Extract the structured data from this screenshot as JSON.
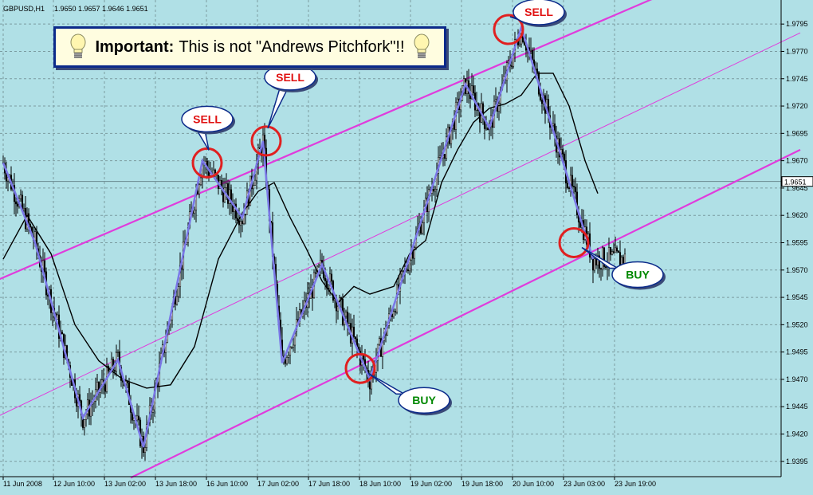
{
  "chart_data": {
    "type": "candlestick",
    "symbol_header": "GBPUSD,H1",
    "ohlc_header": "1.9650 1.9657 1.9646 1.9651",
    "last_price": "1.9651",
    "y_ticks": [
      "1.9795",
      "1.9770",
      "1.9745",
      "1.9720",
      "1.9695",
      "1.9670",
      "1.9645",
      "1.9620",
      "1.9595",
      "1.9570",
      "1.9545",
      "1.9520",
      "1.9495",
      "1.9470",
      "1.9445",
      "1.9420",
      "1.9395"
    ],
    "ylim": [
      1.9381,
      1.9817
    ],
    "x_ticks": [
      "11 Jun 2008",
      "12 Jun 10:00",
      "13 Jun 02:00",
      "13 Jun 18:00",
      "16 Jun 10:00",
      "17 Jun 02:00",
      "17 Jun 18:00",
      "18 Jun 10:00",
      "19 Jun 02:00",
      "19 Jun 18:00",
      "20 Jun 10:00",
      "23 Jun 03:00",
      "23 Jun 19:00"
    ],
    "zigzag": [
      [
        0,
        1.9668
      ],
      [
        20,
        1.9595
      ],
      [
        50,
        1.9435
      ],
      [
        72,
        1.9488
      ],
      [
        88,
        1.9408
      ],
      [
        125,
        1.967
      ],
      [
        150,
        1.9618
      ],
      [
        163,
        1.9688
      ],
      [
        175,
        1.9485
      ],
      [
        200,
        1.9575
      ],
      [
        230,
        1.947
      ],
      [
        290,
        1.974
      ],
      [
        305,
        1.97
      ],
      [
        325,
        1.9792
      ],
      [
        370,
        1.958
      ]
    ],
    "ma": [
      [
        0,
        1.958
      ],
      [
        15,
        1.962
      ],
      [
        30,
        1.9585
      ],
      [
        45,
        1.952
      ],
      [
        60,
        1.9487
      ],
      [
        75,
        1.947
      ],
      [
        90,
        1.9462
      ],
      [
        105,
        1.9465
      ],
      [
        120,
        1.95
      ],
      [
        135,
        1.958
      ],
      [
        150,
        1.9622
      ],
      [
        160,
        1.9642
      ],
      [
        170,
        1.965
      ],
      [
        180,
        1.9618
      ],
      [
        190,
        1.959
      ],
      [
        200,
        1.956
      ],
      [
        210,
        1.954
      ],
      [
        220,
        1.9555
      ],
      [
        230,
        1.9548
      ],
      [
        245,
        1.9555
      ],
      [
        255,
        1.9585
      ],
      [
        265,
        1.9597
      ],
      [
        275,
        1.965
      ],
      [
        285,
        1.968
      ],
      [
        295,
        1.9705
      ],
      [
        305,
        1.9718
      ],
      [
        315,
        1.9722
      ],
      [
        325,
        1.973
      ],
      [
        335,
        1.975
      ],
      [
        345,
        1.975
      ],
      [
        355,
        1.972
      ],
      [
        365,
        1.967
      ],
      [
        373,
        1.964
      ]
    ],
    "channel": {
      "upper": [
        [
          -5,
          1.956
        ],
        [
          500,
          1.9876
        ]
      ],
      "middle": [
        [
          -5,
          1.9435
        ],
        [
          500,
          1.9787
        ]
      ],
      "lower": [
        [
          80,
          1.938
        ],
        [
          500,
          1.968
        ]
      ]
    },
    "signals": [
      {
        "label": "SELL",
        "type": "sell",
        "bar": 128,
        "price": 1.9668
      },
      {
        "label": "SELL",
        "type": "sell",
        "bar": 165,
        "price": 1.9688
      },
      {
        "label": "SELL",
        "type": "sell",
        "bar": 317,
        "price": 1.979
      },
      {
        "label": "BUY",
        "type": "buy",
        "bar": 224,
        "price": 1.948
      },
      {
        "label": "BUY",
        "type": "buy",
        "bar": 358,
        "price": 1.9595
      }
    ]
  },
  "note": {
    "lead": "Important:",
    "message": "This is not \"Andrews Pitchfork\"!!"
  },
  "colors": {
    "background": "#b0e0e6",
    "grid": "#7b9ba0",
    "candle": "#000000",
    "zigzag": "#7a78e6",
    "ma": "#000000",
    "channel": "#e03cdc",
    "marker": "#e02020",
    "sell_text": "#e01010",
    "buy_text": "#008800",
    "bubble_fill": "#ffffff",
    "bubble_border": "#0b2a8a"
  }
}
